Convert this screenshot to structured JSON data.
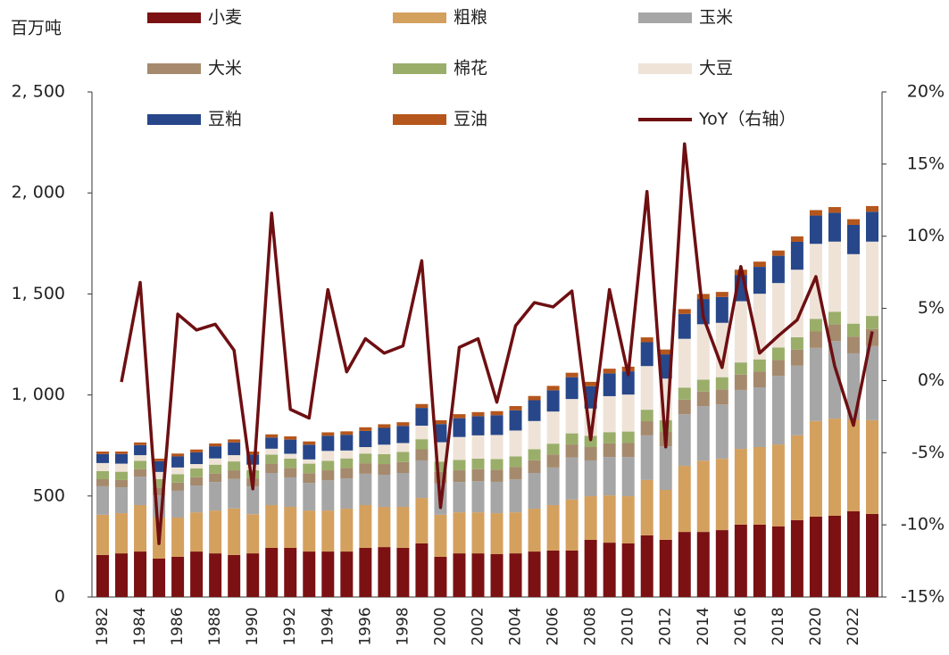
{
  "chart_data": {
    "type": "bar",
    "stacked": true,
    "y_label": "百万吨",
    "categories": [
      "1982",
      null,
      "1984",
      null,
      "1986",
      null,
      "1988",
      null,
      "1990",
      null,
      "1992",
      null,
      "1994",
      null,
      "1996",
      null,
      "1998",
      null,
      "2000",
      null,
      "2002",
      null,
      "2004",
      null,
      "2006",
      null,
      "2008",
      null,
      "2010",
      null,
      "2012",
      null,
      "2014",
      null,
      "2016",
      null,
      "2018",
      null,
      "2020",
      null,
      "2022",
      null
    ],
    "series": [
      {
        "name": "小麦",
        "color": "#7b1113",
        "values": [
          208,
          216,
          225,
          190,
          199,
          225,
          216,
          208,
          216,
          243,
          243,
          225,
          225,
          225,
          243,
          247,
          243,
          265,
          199,
          216,
          216,
          212,
          216,
          225,
          230,
          230,
          283,
          269,
          265,
          305,
          283,
          322,
          322,
          331,
          358,
          358,
          349,
          380,
          398,
          402,
          424,
          411
        ]
      },
      {
        "name": "粗粮",
        "color": "#d4a05e",
        "values": [
          199,
          199,
          230,
          203,
          194,
          194,
          212,
          230,
          194,
          212,
          203,
          203,
          203,
          212,
          212,
          199,
          203,
          225,
          208,
          203,
          203,
          203,
          203,
          212,
          225,
          252,
          216,
          234,
          234,
          274,
          247,
          327,
          353,
          353,
          375,
          384,
          406,
          420,
          473,
          481,
          455,
          464
        ]
      },
      {
        "name": "玉米",
        "color": "#a6a6a6",
        "values": [
          141,
          128,
          141,
          110,
          133,
          133,
          141,
          146,
          137,
          159,
          146,
          137,
          150,
          150,
          155,
          159,
          168,
          186,
          155,
          150,
          155,
          155,
          163,
          177,
          186,
          208,
          177,
          190,
          194,
          221,
          216,
          256,
          269,
          269,
          292,
          296,
          340,
          345,
          362,
          384,
          327,
          367
        ]
      },
      {
        "name": "大米",
        "color": "#a68a6d",
        "values": [
          35,
          36,
          37,
          39,
          40,
          41,
          42,
          43,
          40,
          46,
          47,
          48,
          49,
          51,
          52,
          53,
          54,
          55,
          57,
          58,
          59,
          60,
          61,
          63,
          64,
          65,
          66,
          67,
          69,
          70,
          71,
          72,
          73,
          75,
          76,
          77,
          78,
          79,
          81,
          82,
          83,
          84
        ]
      },
      {
        "name": "棉花",
        "color": "#9aae6a",
        "values": [
          40,
          41,
          41,
          42,
          42,
          43,
          44,
          44,
          40,
          45,
          46,
          47,
          47,
          48,
          48,
          49,
          50,
          50,
          51,
          51,
          52,
          53,
          53,
          54,
          54,
          55,
          56,
          56,
          57,
          57,
          58,
          59,
          59,
          60,
          60,
          61,
          62,
          62,
          63,
          63,
          64,
          65
        ]
      },
      {
        "name": "大豆",
        "color": "#efe3d8",
        "values": [
          40,
          40,
          28,
          35,
          33,
          22,
          31,
          31,
          28,
          29,
          24,
          21,
          49,
          39,
          32,
          47,
          44,
          67,
          96,
          114,
          115,
          119,
          128,
          140,
          159,
          170,
          135,
          178,
          183,
          216,
          206,
          242,
          274,
          269,
          303,
          325,
          319,
          334,
          371,
          347,
          344,
          368
        ]
      },
      {
        "name": "豆粕",
        "color": "#27478a",
        "values": [
          45,
          48,
          50,
          53,
          55,
          58,
          60,
          63,
          50,
          55,
          70,
          73,
          75,
          78,
          80,
          83,
          85,
          88,
          90,
          93,
          95,
          98,
          100,
          103,
          105,
          108,
          110,
          113,
          115,
          118,
          120,
          123,
          125,
          128,
          130,
          133,
          135,
          138,
          140,
          143,
          145,
          148
        ]
      },
      {
        "name": "豆油",
        "color": "#b5561c",
        "values": [
          12,
          12,
          13,
          13,
          14,
          14,
          14,
          15,
          15,
          16,
          16,
          16,
          17,
          17,
          18,
          18,
          18,
          19,
          19,
          20,
          20,
          20,
          21,
          21,
          22,
          22,
          22,
          23,
          23,
          24,
          24,
          24,
          25,
          25,
          26,
          26,
          26,
          27,
          27,
          28,
          28,
          28
        ]
      },
      {
        "name": "YoY（右轴）",
        "color": "#6e0f12",
        "type": "line",
        "axis": "y2",
        "values": [
          null,
          -0.1,
          6.8,
          -11.3,
          4.6,
          3.5,
          3.9,
          2.1,
          -7.5,
          11.6,
          -2.0,
          -2.6,
          6.3,
          0.6,
          2.9,
          1.9,
          2.4,
          8.3,
          -8.8,
          2.3,
          2.9,
          -1.5,
          3.8,
          5.4,
          5.1,
          6.2,
          -4.1,
          6.3,
          0.4,
          13.1,
          -4.6,
          16.4,
          4.4,
          0.9,
          7.9,
          1.9,
          3.1,
          4.2,
          7.2,
          1.0,
          -3.1,
          3.4
        ]
      }
    ],
    "ylim": [
      0,
      2500
    ],
    "yticks": [
      0,
      500,
      {
        "value": 1000,
        "label": "1, 000"
      },
      {
        "value": 1500,
        "label": "1, 500"
      },
      {
        "value": 2000,
        "label": "2, 000"
      },
      {
        "value": 2500,
        "label": "2, 500"
      }
    ],
    "y2lim": [
      -15,
      20
    ],
    "y2ticks": [
      {
        "value": -15,
        "label": "-15%"
      },
      {
        "value": -10,
        "label": "-10%"
      },
      {
        "value": -5,
        "label": "-5%"
      },
      {
        "value": 0,
        "label": "0%"
      },
      {
        "value": 5,
        "label": "5%"
      },
      {
        "value": 10,
        "label": "10%"
      },
      {
        "value": 15,
        "label": "15%"
      },
      {
        "value": 20,
        "label": "20%"
      }
    ],
    "grid": false
  }
}
